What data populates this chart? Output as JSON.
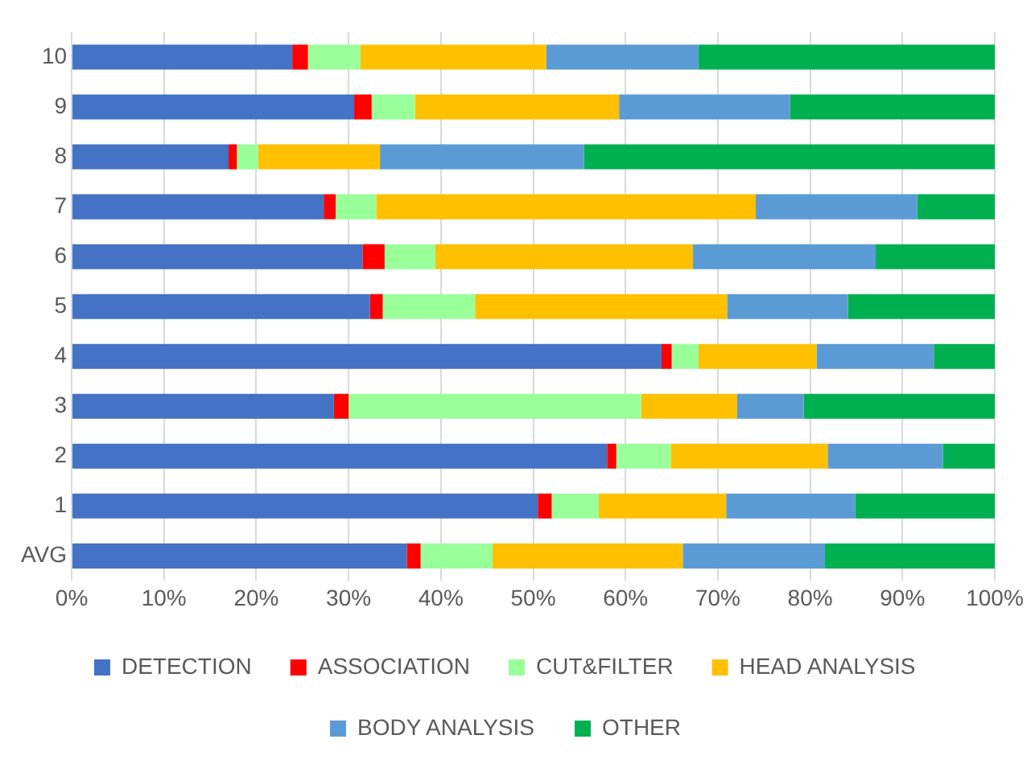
{
  "chart_data": {
    "type": "bar",
    "orientation": "horizontal",
    "stacked": true,
    "grid": "x",
    "legend": "bottom",
    "categories": [
      "10",
      "9",
      "8",
      "7",
      "6",
      "5",
      "4",
      "3",
      "2",
      "1",
      "AVG"
    ],
    "xlim": [
      0,
      100
    ],
    "xticks": [
      {
        "value": 0,
        "label": "0%"
      },
      {
        "value": 10,
        "label": "10%"
      },
      {
        "value": 20,
        "label": "20%"
      },
      {
        "value": 30,
        "label": "30%"
      },
      {
        "value": 40,
        "label": "40%"
      },
      {
        "value": 50,
        "label": "50%"
      },
      {
        "value": 60,
        "label": "60%"
      },
      {
        "value": 70,
        "label": "70%"
      },
      {
        "value": 80,
        "label": "80%"
      },
      {
        "value": 90,
        "label": "90%"
      },
      {
        "value": 100,
        "label": "100%"
      }
    ],
    "series": [
      {
        "name": "DETECTION",
        "color": "#4472c4",
        "values": [
          23.9,
          30.6,
          17.0,
          27.3,
          31.5,
          32.3,
          63.9,
          28.4,
          58.0,
          50.5,
          36.3
        ]
      },
      {
        "name": "ASSOCIATION",
        "color": "#ff0000",
        "values": [
          1.7,
          1.9,
          0.9,
          1.3,
          2.4,
          1.4,
          1.1,
          1.6,
          1.0,
          1.5,
          1.5
        ]
      },
      {
        "name": "CUT&FILTER",
        "color": "#99ff99",
        "values": [
          5.7,
          4.7,
          2.3,
          4.4,
          5.5,
          10.0,
          2.9,
          31.7,
          5.9,
          5.1,
          7.8
        ]
      },
      {
        "name": "HEAD ANALYSIS",
        "color": "#ffc000",
        "values": [
          20.1,
          22.1,
          13.2,
          41.1,
          27.9,
          27.3,
          12.8,
          10.4,
          17.0,
          13.8,
          20.6
        ]
      },
      {
        "name": "BODY ANALYSIS",
        "color": "#5b9bd5",
        "values": [
          16.5,
          18.5,
          22.1,
          17.5,
          19.8,
          13.1,
          12.7,
          7.2,
          12.5,
          14.0,
          15.4
        ]
      },
      {
        "name": "OTHER",
        "color": "#00b050",
        "values": [
          32.1,
          22.2,
          44.5,
          8.4,
          12.9,
          15.9,
          6.6,
          20.7,
          5.6,
          15.1,
          18.4
        ]
      }
    ]
  }
}
